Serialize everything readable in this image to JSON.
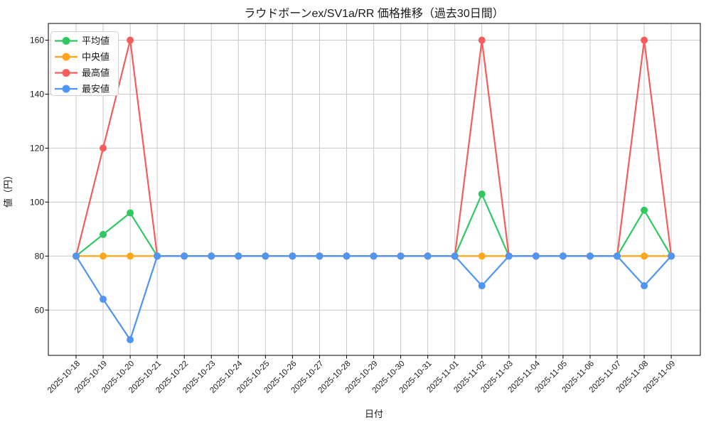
{
  "chart_data": {
    "type": "line",
    "title": "ラウドボーンex/SV1a/RR 価格推移（過去30日間）",
    "xlabel": "日付",
    "ylabel": "値（円）",
    "categories": [
      "2025-10-18",
      "2025-10-19",
      "2025-10-20",
      "2025-10-21",
      "2025-10-22",
      "2025-10-23",
      "2025-10-24",
      "2025-10-25",
      "2025-10-26",
      "2025-10-27",
      "2025-10-28",
      "2025-10-29",
      "2025-10-30",
      "2025-10-31",
      "2025-11-01",
      "2025-11-02",
      "2025-11-03",
      "2025-11-04",
      "2025-11-05",
      "2025-11-06",
      "2025-11-07",
      "2025-11-08",
      "2025-11-09"
    ],
    "series": [
      {
        "key": "average",
        "name": "平均値",
        "color": "#31c862",
        "values": [
          80,
          88,
          96,
          80,
          80,
          80,
          80,
          80,
          80,
          80,
          80,
          80,
          80,
          80,
          80,
          103,
          80,
          80,
          80,
          80,
          80,
          97,
          80
        ]
      },
      {
        "key": "median",
        "name": "中央値",
        "color": "#ffa61b",
        "values": [
          80,
          80,
          80,
          80,
          80,
          80,
          80,
          80,
          80,
          80,
          80,
          80,
          80,
          80,
          80,
          80,
          80,
          80,
          80,
          80,
          80,
          80,
          80
        ]
      },
      {
        "key": "max",
        "name": "最高値",
        "color": "#f75d5d",
        "values": [
          80,
          120,
          160,
          80,
          80,
          80,
          80,
          80,
          80,
          80,
          80,
          80,
          80,
          80,
          80,
          160,
          80,
          80,
          80,
          80,
          80,
          160,
          80
        ]
      },
      {
        "key": "min",
        "name": "最安値",
        "color": "#4f95f3",
        "values": [
          80,
          64,
          49,
          80,
          80,
          80,
          80,
          80,
          80,
          80,
          80,
          80,
          80,
          80,
          80,
          69,
          80,
          80,
          80,
          80,
          80,
          69,
          80
        ]
      }
    ],
    "yticks": [
      60,
      80,
      100,
      120,
      140,
      160
    ],
    "ylim": [
      43.2,
      166.2
    ],
    "grid": true,
    "grid_color": "#c9c9c9",
    "spine_color": "#000000",
    "background": "#ffffff",
    "legend_position": "upper left",
    "tick_label_rotation_deg": 45
  }
}
